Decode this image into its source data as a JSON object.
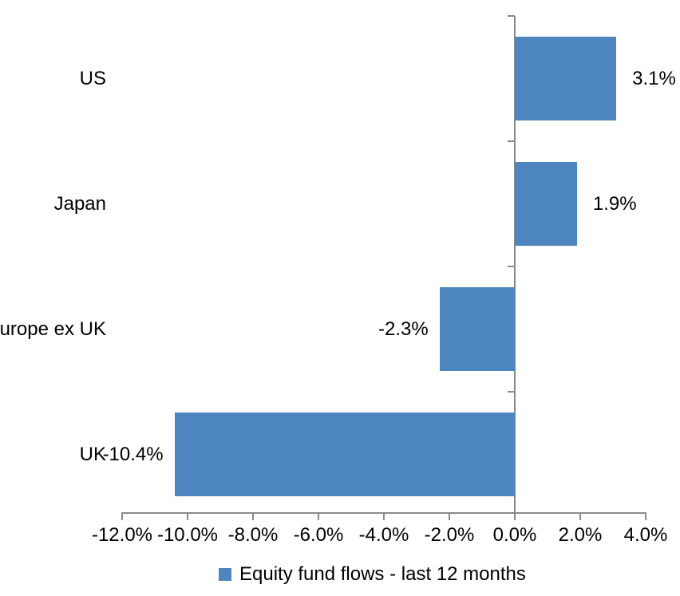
{
  "chart_data": {
    "type": "bar",
    "orientation": "horizontal",
    "title": "",
    "xlabel": "",
    "ylabel": "",
    "categories": [
      "US",
      "Japan",
      "Europe ex UK",
      "UK"
    ],
    "series": [
      {
        "name": "Equity fund flows - last 12 months",
        "values": [
          3.1,
          1.9,
          -2.3,
          -10.4
        ],
        "value_labels": [
          "3.1%",
          "1.9%",
          "-2.3%",
          "-10.4%"
        ]
      }
    ],
    "x_tick_labels": [
      "-12.0%",
      "-10.0%",
      "-8.0%",
      "-6.0%",
      "-4.0%",
      "-2.0%",
      "0.0%",
      "2.0%",
      "4.0%"
    ],
    "xlim": [
      -12.0,
      4.0
    ],
    "x_tick_step": 2.0,
    "grid": false,
    "data_label_position": "outside-end",
    "legend_position": "bottom",
    "colors": {
      "bar_fill": "#4d85bf",
      "axis_line": "#8a8a8a",
      "text": "#000000",
      "background": "#ffffff"
    }
  },
  "legend": {
    "label": "Equity fund flows - last 12 months"
  }
}
